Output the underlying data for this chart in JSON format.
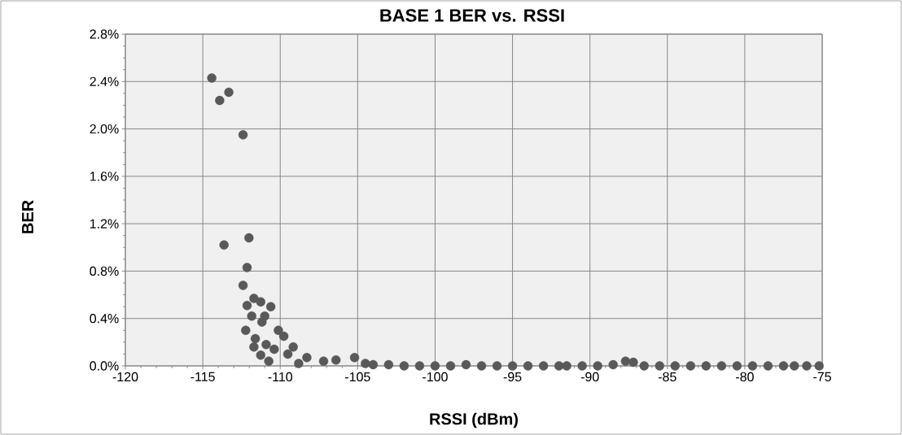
{
  "chart_data": {
    "type": "scatter",
    "title": "BASE 1 BER vs. RSSI",
    "xlabel": "RSSI (dBm)",
    "ylabel": "BER",
    "grid": true,
    "xlim": [
      -120,
      -75
    ],
    "xticks": [
      -120,
      -115,
      -110,
      -105,
      -100,
      -95,
      -90,
      -85,
      -80,
      -75
    ],
    "ylim": [
      0,
      2.8
    ],
    "yticks": [
      {
        "value": 0,
        "label": "0.0%"
      },
      {
        "value": 0.4,
        "label": "0.4%"
      },
      {
        "value": 0.8,
        "label": "0.8%"
      },
      {
        "value": 1.2,
        "label": "1.2%"
      },
      {
        "value": 1.6,
        "label": "1.6%"
      },
      {
        "value": 2.0,
        "label": "2.0%"
      },
      {
        "value": 2.4,
        "label": "2.4%"
      },
      {
        "value": 2.8,
        "label": "2.8%"
      }
    ],
    "series": [
      {
        "color": "#595959",
        "x": [
          -114.42,
          -113.32,
          -113.91,
          -112.4,
          -112.02,
          -113.63,
          -112.14,
          -112.4,
          -111.7,
          -112.14,
          -111.26,
          -110.61,
          -111.84,
          -111.0,
          -112.23,
          -111.18,
          -110.12,
          -109.77,
          -111.61,
          -111.7,
          -111.26,
          -110.74,
          -110.91,
          -110.39,
          -109.16,
          -109.51,
          -108.81,
          -108.28,
          -107.2,
          -106.4,
          -105.2,
          -104.5,
          -104,
          -103,
          -102,
          -101,
          -100,
          -99,
          -98,
          -97,
          -96,
          -95,
          -94,
          -93,
          -92,
          -91.5,
          -90.5,
          -89.5,
          -88.5,
          -87.7,
          -87.2,
          -86.5,
          -85.5,
          -84.5,
          -83.5,
          -82.5,
          -81.5,
          -80.5,
          -79.5,
          -78.5,
          -77.5,
          -76.8,
          -76,
          -75.2
        ],
        "values": [
          2.43,
          2.31,
          2.24,
          1.95,
          1.08,
          1.02,
          0.83,
          0.68,
          0.57,
          0.51,
          0.54,
          0.5,
          0.42,
          0.42,
          0.3,
          0.37,
          0.3,
          0.25,
          0.23,
          0.16,
          0.09,
          0.04,
          0.18,
          0.14,
          0.16,
          0.1,
          0.02,
          0.07,
          0.04,
          0.05,
          0.07,
          0.02,
          0.01,
          0.01,
          0,
          0,
          0,
          0,
          0.01,
          0,
          0,
          0,
          0,
          0,
          0,
          0,
          0,
          0,
          0.01,
          0.04,
          0.03,
          0,
          0,
          0,
          0,
          0,
          0,
          0,
          0,
          0,
          0,
          0,
          0,
          0
        ]
      }
    ]
  }
}
